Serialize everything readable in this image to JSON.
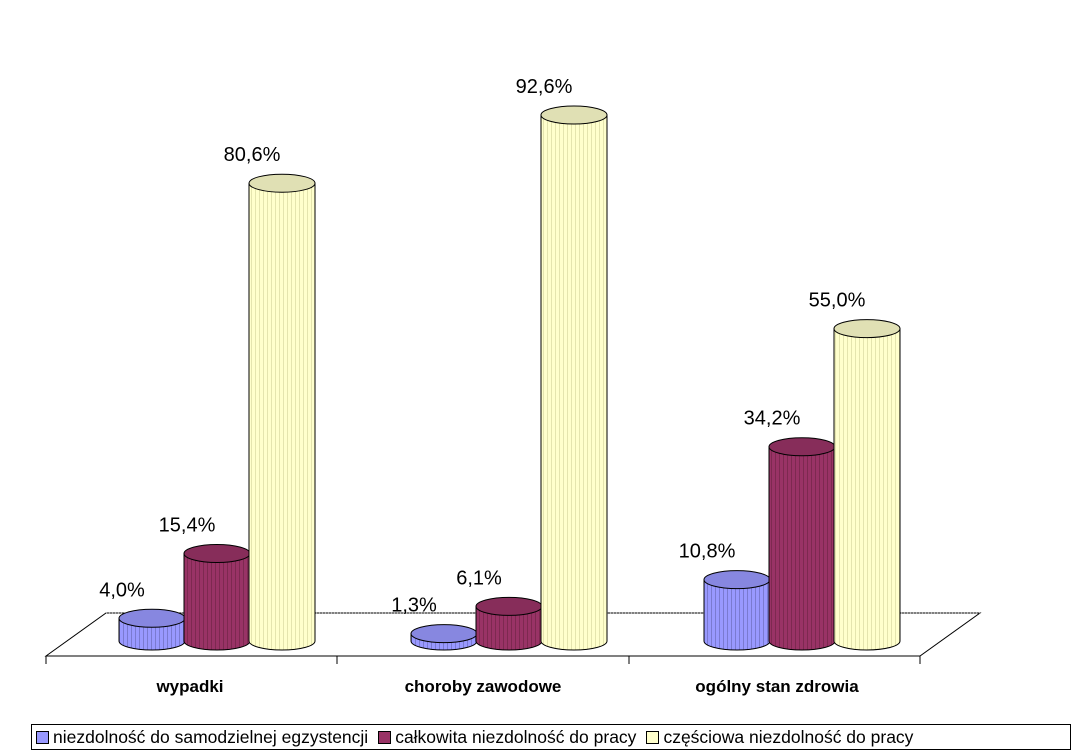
{
  "chart_data": {
    "type": "bar",
    "title": "",
    "xlabel": "",
    "ylabel": "",
    "ylim": [
      0,
      100
    ],
    "grid": false,
    "legend_position": "bottom",
    "categories": [
      "wypadki",
      "choroby zawodowe",
      "ogólny stan zdrowia"
    ],
    "series": [
      {
        "name": "niezdolność do samodzielnej egzystencji",
        "values": [
          4.0,
          1.3,
          10.8
        ],
        "labels": [
          "4,0%",
          "1,3%",
          "10,8%"
        ],
        "color": "#9999ff"
      },
      {
        "name": "całkowita niezdolność do pracy",
        "values": [
          15.4,
          6.1,
          34.2
        ],
        "labels": [
          "15,4%",
          "6,1%",
          "34,2%"
        ],
        "color": "#993366"
      },
      {
        "name": "częściowa niezdolność do pracy",
        "values": [
          80.6,
          92.6,
          55.0
        ],
        "labels": [
          "80,6%",
          "92,6%",
          "55,0%"
        ],
        "color": "#ffffcc"
      }
    ]
  }
}
